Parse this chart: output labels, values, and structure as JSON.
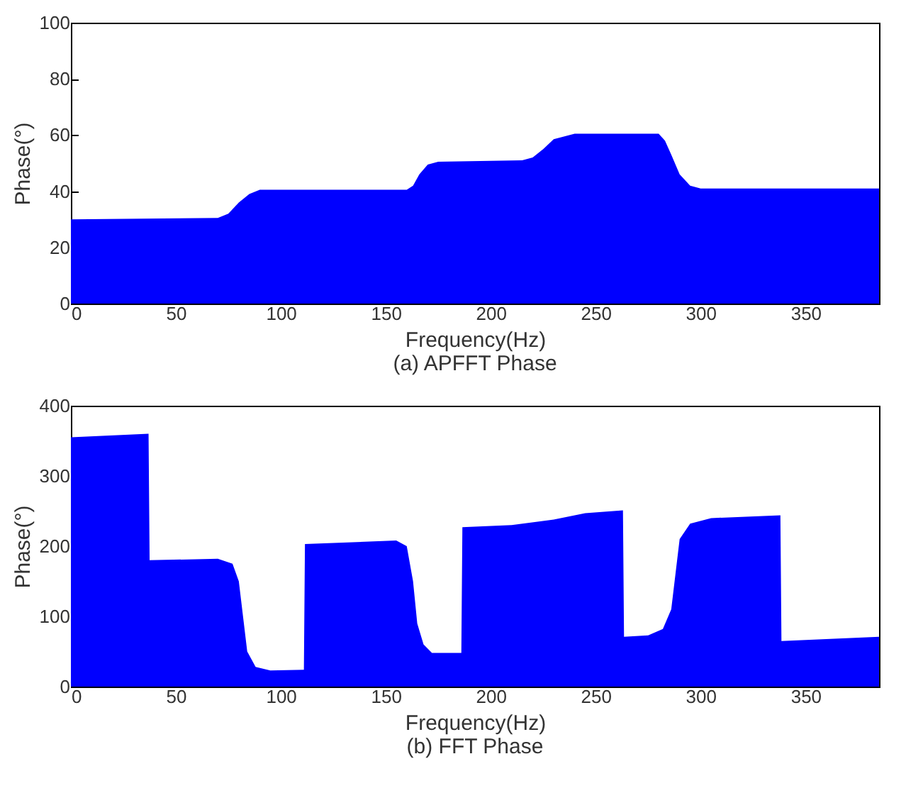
{
  "chart_data": [
    {
      "type": "area",
      "title": "(a) APFFT Phase",
      "xlabel": "Frequency(Hz)",
      "ylabel": "Phase(°)",
      "xlim": [
        0,
        385
      ],
      "ylim": [
        0,
        100
      ],
      "xticks": [
        0,
        50,
        100,
        150,
        200,
        250,
        300,
        350
      ],
      "yticks": [
        0,
        20,
        40,
        60,
        80,
        100
      ],
      "grid": false,
      "series": [
        {
          "color": "#0000ff",
          "x": [
            0,
            70,
            75,
            80,
            85,
            90,
            160,
            163,
            166,
            170,
            175,
            215,
            220,
            225,
            230,
            240,
            280,
            283,
            286,
            290,
            295,
            300,
            385
          ],
          "values": [
            30,
            30.5,
            32,
            36,
            39,
            40.5,
            40.5,
            42,
            46,
            49.5,
            50.5,
            51,
            52,
            55,
            58.5,
            60.5,
            60.5,
            58,
            53,
            46,
            42,
            41,
            41
          ]
        }
      ]
    },
    {
      "type": "area",
      "title": "(b) FFT Phase",
      "xlabel": "Frequency(Hz)",
      "ylabel": "Phase(°)",
      "xlim": [
        0,
        385
      ],
      "ylim": [
        0,
        400
      ],
      "xticks": [
        0,
        50,
        100,
        150,
        200,
        250,
        300,
        350
      ],
      "yticks": [
        0,
        100,
        200,
        300,
        400
      ],
      "grid": false,
      "series": [
        {
          "color": "#0000ff",
          "x": [
            0,
            37,
            37.5,
            70,
            77,
            80,
            82,
            84,
            88,
            95,
            111,
            111.5,
            155,
            160,
            163,
            165,
            168,
            172,
            186,
            186.5,
            210,
            230,
            245,
            263,
            263.5,
            275,
            282,
            286,
            288,
            290,
            295,
            305,
            338,
            338.5,
            385
          ],
          "values": [
            355,
            360,
            180,
            182,
            175,
            150,
            100,
            50,
            28,
            23,
            24,
            203,
            208,
            200,
            150,
            90,
            60,
            48,
            48,
            227,
            230,
            238,
            247,
            251,
            71,
            73,
            82,
            110,
            160,
            210,
            232,
            240,
            244,
            65,
            71
          ]
        }
      ]
    }
  ]
}
